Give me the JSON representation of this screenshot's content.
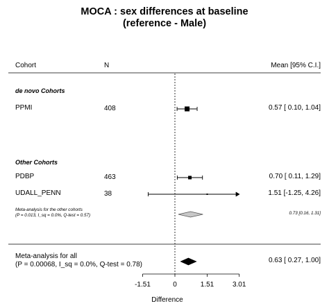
{
  "chart_data": {
    "type": "forest",
    "title_line1": "MOCA : sex differences at baseline",
    "title_line2": "(reference - Male)",
    "columns": {
      "cohort": "Cohort",
      "n": "N",
      "mean": "Mean [95% C.I.]"
    },
    "xlabel": "Difference",
    "x_ticks": [
      "-1.51",
      "0",
      "1.51",
      "3.01"
    ],
    "x_tick_values": [
      -1.51,
      0,
      1.51,
      3.01
    ],
    "xlim": [
      -1.51,
      3.01
    ],
    "reference_line": 0,
    "groups": [
      {
        "name": "de novo Cohorts",
        "studies": [
          {
            "name": "PPMI",
            "n": "408",
            "mean": 0.57,
            "lower": 0.1,
            "upper": 1.04,
            "ci_text": "0.57 [ 0.10, 1.04]"
          }
        ]
      },
      {
        "name": "Other Cohorts",
        "studies": [
          {
            "name": "PDBP",
            "n": "463",
            "mean": 0.7,
            "lower": 0.11,
            "upper": 1.29,
            "ci_text": "0.70 [ 0.11, 1.29]"
          },
          {
            "name": "UDALL_PENN",
            "n": "38",
            "mean": 1.51,
            "lower": -1.25,
            "upper": 4.26,
            "ci_text": "1.51 [-1.25, 4.26]"
          }
        ],
        "meta": {
          "line1": "Meta-analysis for the other cohorts",
          "line2": "(P = 0.013, I_sq = 0.0%, Q-test = 0.57)",
          "mean": 0.73,
          "lower": 0.16,
          "upper": 1.31,
          "ci_text": "0.73 [0.16, 1.31]"
        }
      }
    ],
    "overall": {
      "line1": "Meta-analysis for all",
      "line2": "(P = 0.00068, I_sq = 0.0%, Q-test = 0.78)",
      "mean": 0.63,
      "lower": 0.27,
      "upper": 1.0,
      "ci_text": "0.63 [ 0.27, 1.00]"
    },
    "colors": {
      "ink": "#000000",
      "subgroup_diamond": "#c8c8c8",
      "rule": "#000000"
    }
  }
}
